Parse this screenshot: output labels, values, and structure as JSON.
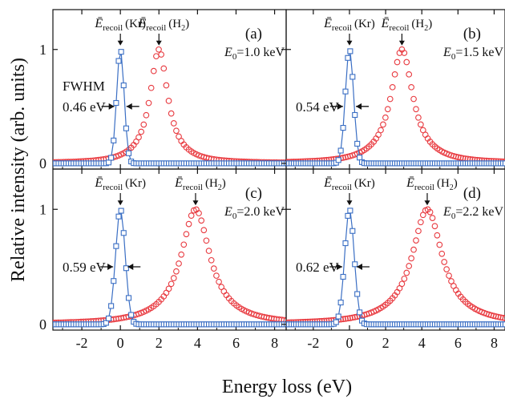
{
  "figure": {
    "ylabel": "Relative intensity (arb. units)",
    "xlabel": "Energy loss (eV)"
  },
  "colors": {
    "kr": "#3b6fc4",
    "h2": "#e8393f",
    "frame": "#111111"
  },
  "chart_data": [
    {
      "type": "scatter",
      "panel": "(a)",
      "energy_label": "E0=1.0 keV",
      "fwhm_title": "FWHM",
      "fwhm_label": "0.46 eV",
      "kr_label": "Ērecoil (Kr)",
      "h2_label": "Ērecoil (H2)",
      "xlim": [
        -3.5,
        8.6
      ],
      "ylim": [
        -0.05,
        1.35
      ],
      "x_ticks": [
        -2,
        0,
        2,
        4,
        6,
        8
      ],
      "y_ticks": [
        0,
        1
      ],
      "series": [
        {
          "marker": "open square",
          "color": "#3b6fc4",
          "peak_x": 0.0,
          "fwhm": 0.46,
          "peak_y": 1.0
        },
        {
          "marker": "open circle",
          "color": "#e8393f",
          "peak_x": 2.0,
          "fwhm": 1.1,
          "peak_y": 1.0
        }
      ]
    },
    {
      "type": "scatter",
      "panel": "(b)",
      "energy_label": "E0=1.5 keV",
      "fwhm_title": "",
      "fwhm_label": "0.54 eV",
      "kr_label": "Ērecoil (Kr)",
      "h2_label": "Ērecoil (H2)",
      "xlim": [
        -3.5,
        8.6
      ],
      "ylim": [
        -0.05,
        1.35
      ],
      "x_ticks": [
        -2,
        0,
        2,
        4,
        6,
        8
      ],
      "y_ticks": [
        0,
        1
      ],
      "series": [
        {
          "marker": "open square",
          "color": "#3b6fc4",
          "peak_x": 0.0,
          "fwhm": 0.54,
          "peak_y": 1.0
        },
        {
          "marker": "open circle",
          "color": "#e8393f",
          "peak_x": 2.9,
          "fwhm": 1.45,
          "peak_y": 1.0
        }
      ]
    },
    {
      "type": "scatter",
      "panel": "(c)",
      "energy_label": "E0=2.0 keV",
      "fwhm_title": "",
      "fwhm_label": "0.59 eV",
      "kr_label": "Ērecoil (Kr)",
      "h2_label": "Ērecoil (H2)",
      "xlim": [
        -3.5,
        8.6
      ],
      "ylim": [
        -0.05,
        1.35
      ],
      "x_ticks": [
        -2,
        0,
        2,
        4,
        6,
        8
      ],
      "y_ticks": [
        0,
        1
      ],
      "series": [
        {
          "marker": "open square",
          "color": "#3b6fc4",
          "peak_x": 0.0,
          "fwhm": 0.59,
          "peak_y": 1.0
        },
        {
          "marker": "open circle",
          "color": "#e8393f",
          "peak_x": 3.9,
          "fwhm": 1.8,
          "peak_y": 1.0
        }
      ]
    },
    {
      "type": "scatter",
      "panel": "(d)",
      "energy_label": "E0=2.2 keV",
      "fwhm_title": "",
      "fwhm_label": "0.62 eV",
      "kr_label": "Ērecoil (Kr)",
      "h2_label": "Ērecoil (H2)",
      "xlim": [
        -3.5,
        8.6
      ],
      "ylim": [
        -0.05,
        1.35
      ],
      "x_ticks": [
        -2,
        0,
        2,
        4,
        6,
        8
      ],
      "y_ticks": [
        0,
        1
      ],
      "series": [
        {
          "marker": "open square",
          "color": "#3b6fc4",
          "peak_x": 0.0,
          "fwhm": 0.62,
          "peak_y": 1.0
        },
        {
          "marker": "open circle",
          "color": "#e8393f",
          "peak_x": 4.3,
          "fwhm": 2.0,
          "peak_y": 1.0
        }
      ]
    }
  ]
}
